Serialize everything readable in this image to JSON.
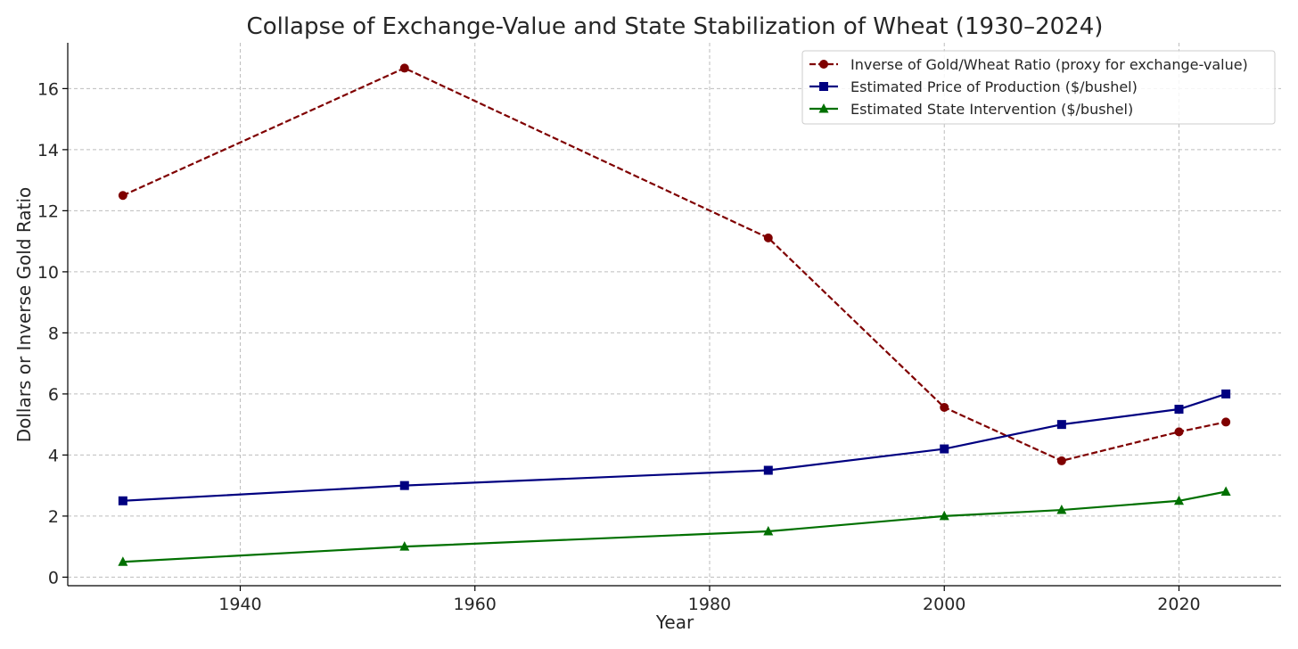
{
  "chart_data": {
    "type": "line",
    "title": "Collapse of Exchange-Value and State Stabilization of Wheat (1930–2024)",
    "xlabel": "Year",
    "ylabel": "Dollars or Inverse Gold Ratio",
    "xlim": [
      1925.3,
      2028.7
    ],
    "ylim": [
      -0.28,
      17.5
    ],
    "x_ticks": [
      1940,
      1960,
      1980,
      2000,
      2020
    ],
    "y_ticks": [
      0,
      2,
      4,
      6,
      8,
      10,
      12,
      14,
      16
    ],
    "grid": true,
    "legend_position": "top-right",
    "x": [
      1930,
      1954,
      1985,
      2000,
      2010,
      2020,
      2024
    ],
    "series": [
      {
        "name": "Inverse of Gold/Wheat Ratio (proxy for exchange-value)",
        "values": [
          12.5,
          16.67,
          11.11,
          5.56,
          3.81,
          4.76,
          5.08
        ],
        "color": "#7f0000",
        "line_style": "dashed",
        "marker": "circle"
      },
      {
        "name": "Estimated Price of Production ($/bushel)",
        "values": [
          2.5,
          3.0,
          3.5,
          4.2,
          5.0,
          5.5,
          6.0
        ],
        "color": "#000080",
        "line_style": "solid",
        "marker": "square"
      },
      {
        "name": "Estimated State Intervention ($/bushel)",
        "values": [
          0.5,
          1.0,
          1.5,
          2.0,
          2.2,
          2.5,
          2.8
        ],
        "color": "#007000",
        "line_style": "solid",
        "marker": "triangle"
      }
    ]
  }
}
